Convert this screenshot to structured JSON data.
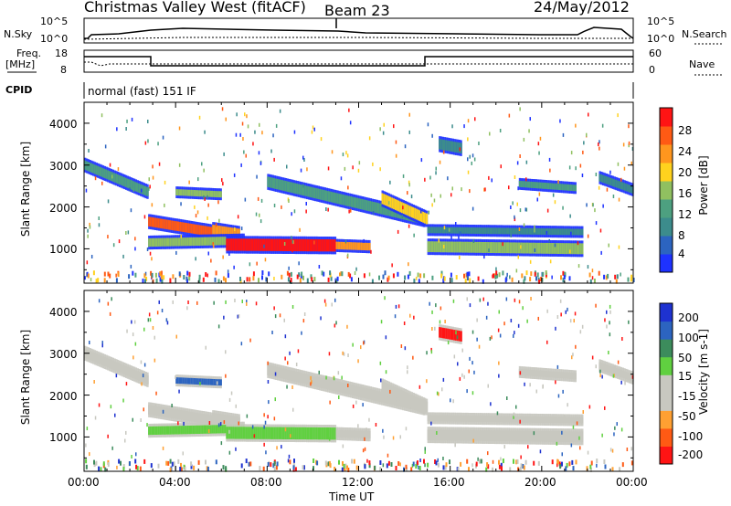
{
  "header": {
    "title": "Christmas Valley West (fitACF)",
    "beam": "Beam 23",
    "date": "24/May/2012"
  },
  "top_panels": {
    "nsky_label": "N.Sky",
    "nsky_ticks": [
      "10^5",
      "10^0"
    ],
    "nsearch_label": "N.Search",
    "nsearch_ticks": [
      "10^5",
      "10^0"
    ],
    "freq_label": "Freq.",
    "freq_unit": "[MHz]",
    "freq_ticks": [
      "18",
      "8"
    ],
    "nave_label": "Nave",
    "nave_ticks": [
      "60",
      "0"
    ],
    "cpid_label": "CPID",
    "cpid_text": "normal (fast) 151 IF"
  },
  "colors": {
    "power": [
      "#1e32ff",
      "#2c64c0",
      "#3c8c8c",
      "#4da080",
      "#90c060",
      "#ffd21e",
      "#ff961e",
      "#ff5a14",
      "#ff1414"
    ],
    "velocity": [
      "#ff1414",
      "#ff5a14",
      "#ffa032",
      "#c8c8c0",
      "#c8c8c0",
      "#60d040",
      "#3c8c5c",
      "#2c64c0",
      "#1e32d0"
    ]
  },
  "chart_data": [
    {
      "type": "heatmap",
      "panel": "power",
      "ylabel": "Slant Range [km]",
      "ylim": [
        180,
        4500
      ],
      "yticks": [
        "4000",
        "3000",
        "2000",
        "1000"
      ],
      "xlim": [
        0,
        24
      ],
      "colorbar_label": "Power [dB]",
      "colorbar_ticks": [
        "28",
        "24",
        "20",
        "16",
        "12",
        "8",
        "4"
      ]
    },
    {
      "type": "heatmap",
      "panel": "velocity",
      "ylabel": "Slant Range [km]",
      "ylim": [
        180,
        4500
      ],
      "yticks": [
        "4000",
        "3000",
        "2000",
        "1000"
      ],
      "xlim": [
        0,
        24
      ],
      "xlabel": "Time UT",
      "xticks": [
        "00:00",
        "04:00",
        "08:00",
        "12:00",
        "16:00",
        "20:00",
        "00:00"
      ],
      "colorbar_label": "Velocity [m s-1]",
      "colorbar_ticks": [
        "200",
        "100",
        "50",
        "15",
        "-15",
        "-50",
        "-100",
        "-200"
      ]
    }
  ]
}
